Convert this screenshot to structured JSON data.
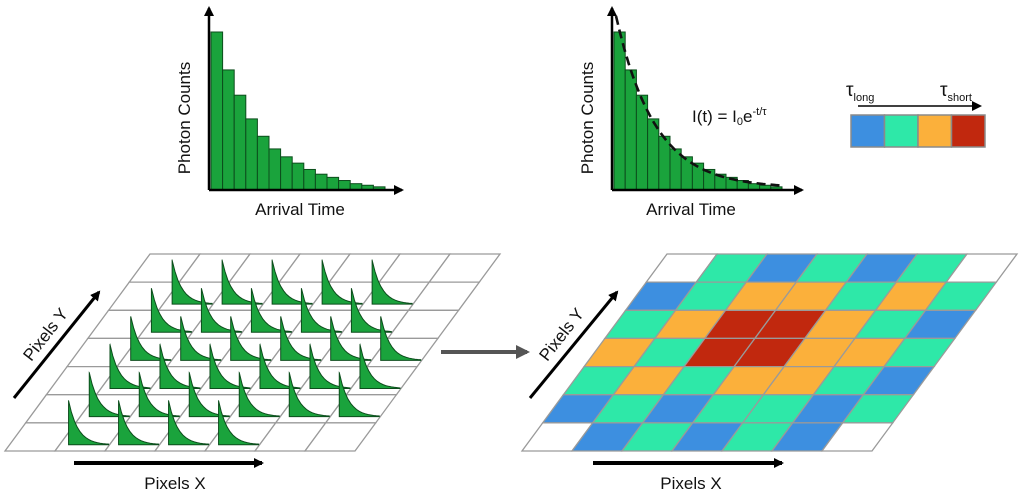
{
  "histogram_left": {
    "ylabel": "Photon Counts",
    "xlabel": "Arrival Time",
    "bin_counts": [
      1.0,
      0.76,
      0.6,
      0.45,
      0.34,
      0.26,
      0.21,
      0.17,
      0.13,
      0.1,
      0.08,
      0.06,
      0.04,
      0.03,
      0.02
    ]
  },
  "histogram_right": {
    "ylabel": "Photon Counts",
    "xlabel": "Arrival Time",
    "equation_prefix": "I(t) = I",
    "equation_sub": "0",
    "equation_e": "e",
    "equation_exponent": "-t/τ",
    "bin_counts": [
      1.0,
      0.76,
      0.6,
      0.45,
      0.34,
      0.26,
      0.21,
      0.17,
      0.13,
      0.1,
      0.08,
      0.06,
      0.04,
      0.03,
      0.02
    ]
  },
  "legend": {
    "tau_symbol": "τ",
    "long_sub": "long",
    "short_sub": "short",
    "swatch_colors": [
      "#3d8fe0",
      "#2ee8a8",
      "#fbb03b",
      "#c1280e"
    ]
  },
  "grid_left": {
    "xlabel": "Pixels X",
    "ylabel": "Pixels Y",
    "decay_color": "#1aa33c"
  },
  "grid_right": {
    "xlabel": "Pixels X",
    "ylabel": "Pixels Y",
    "palette": {
      "0": "#ffffff",
      "1": "#3d8fe0",
      "2": "#2ee8a8",
      "3": "#fbb03b",
      "4": "#c1280e"
    },
    "cells": [
      [
        0,
        2,
        1,
        2,
        1,
        2,
        0
      ],
      [
        1,
        2,
        3,
        3,
        2,
        3,
        2
      ],
      [
        2,
        3,
        4,
        4,
        3,
        2,
        1
      ],
      [
        3,
        2,
        4,
        4,
        3,
        3,
        2
      ],
      [
        2,
        3,
        2,
        3,
        3,
        2,
        1
      ],
      [
        1,
        2,
        1,
        2,
        2,
        1,
        2
      ],
      [
        0,
        1,
        2,
        1,
        2,
        1,
        0
      ]
    ]
  }
}
